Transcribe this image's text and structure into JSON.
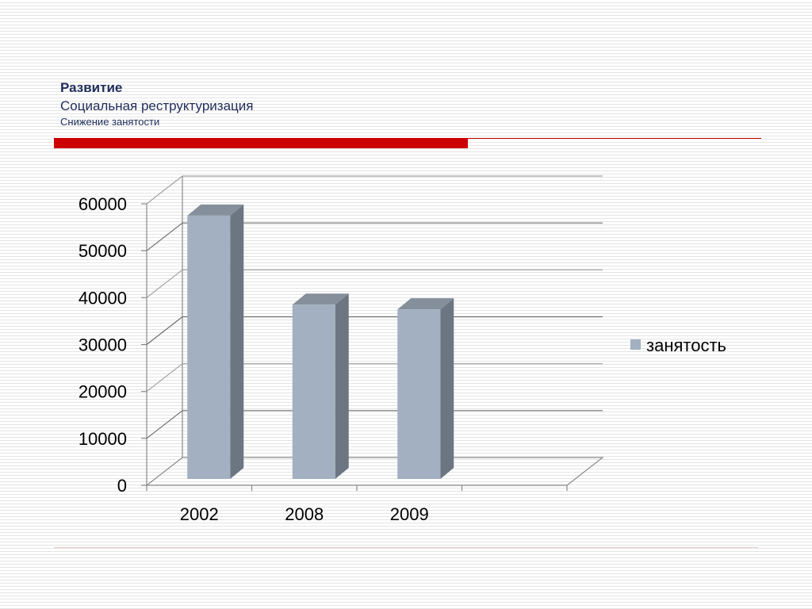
{
  "header": {
    "title": "Развитие",
    "subtitle": "Социальная реструктуризация",
    "caption": "Снижение занятости"
  },
  "colors": {
    "accent_red": "#cc0000",
    "title_blue": "#1f2d5a",
    "bar_front": "#a2b0c1",
    "bar_side": "#6b7682",
    "bar_top": "#858f9b"
  },
  "chart_data": {
    "type": "bar",
    "style": "3d",
    "categories": [
      "2002",
      "2008",
      "2009"
    ],
    "series": [
      {
        "name": "занятость",
        "values": [
          58000,
          39000,
          38000
        ]
      }
    ],
    "ylim": [
      0,
      60000
    ],
    "yticks": [
      0,
      10000,
      20000,
      30000,
      40000,
      50000,
      60000
    ],
    "grid": true,
    "legend": "right"
  }
}
